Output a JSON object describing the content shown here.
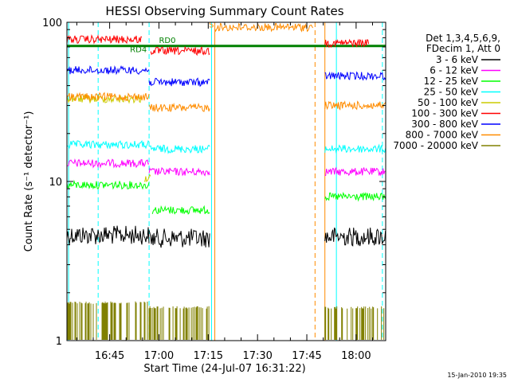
{
  "chart_data": {
    "type": "line",
    "title": "HESSI Observing Summary Count Rates",
    "xlabel": "Start Time (24-Jul-07 16:31:22)",
    "ylabel": "Count Rate (s⁻¹ detector⁻¹)",
    "yscale": "log",
    "ylim": [
      1,
      100
    ],
    "xlim_minutes_after_1630": [
      2,
      99
    ],
    "x_ticks": [
      {
        "label": "16:45",
        "minute": 15
      },
      {
        "label": "17:00",
        "minute": 30
      },
      {
        "label": "17:15",
        "minute": 45
      },
      {
        "label": "17:30",
        "minute": 60
      },
      {
        "label": "17:45",
        "minute": 75
      },
      {
        "label": "18:00",
        "minute": 90
      }
    ],
    "y_ticks": [
      {
        "label": "1",
        "value": 1
      },
      {
        "label": "10",
        "value": 10
      },
      {
        "label": "100",
        "value": 100
      }
    ],
    "legend": {
      "position": "right",
      "header": [
        "Det 1,3,4,5,6,9,",
        "FDecim 1, Att 0"
      ],
      "entries": [
        {
          "label": "3 - 6 keV",
          "color": "#000000"
        },
        {
          "label": "6 - 12 keV",
          "color": "#ff00ff"
        },
        {
          "label": "12 - 25 keV",
          "color": "#00ff00"
        },
        {
          "label": "25 - 50 keV",
          "color": "#00ffff"
        },
        {
          "label": "50 - 100 keV",
          "color": "#cccc00"
        },
        {
          "label": "100 - 300 keV",
          "color": "#ff0000"
        },
        {
          "label": "300 - 800 keV",
          "color": "#0000ff"
        },
        {
          "label": "800 - 7000 keV",
          "color": "#ff8c00"
        },
        {
          "label": "7000 - 20000 keV",
          "color": "#808000"
        }
      ]
    },
    "series": [
      {
        "name": "3 - 6 keV",
        "color": "#000000",
        "segments": [
          {
            "x0": 2,
            "x1": 27,
            "y": 4.6
          },
          {
            "x0": 27,
            "x1": 45.5,
            "y": 4.4
          },
          {
            "x0": 80.5,
            "x1": 99,
            "y": 4.5
          }
        ]
      },
      {
        "name": "6 - 12 keV",
        "color": "#ff00ff",
        "segments": [
          {
            "x0": 2,
            "x1": 27,
            "y": 13
          },
          {
            "x0": 27,
            "x1": 45.5,
            "y": 11.5
          },
          {
            "x0": 80.5,
            "x1": 99,
            "y": 11.5
          }
        ]
      },
      {
        "name": "12 - 25 keV",
        "color": "#00ff00",
        "segments": [
          {
            "x0": 2,
            "x1": 27,
            "y": 9.5
          },
          {
            "x0": 28,
            "x1": 45.5,
            "y": 6.6
          },
          {
            "x0": 80.5,
            "x1": 99,
            "y": 8
          }
        ]
      },
      {
        "name": "25 - 50 keV",
        "color": "#00ffff",
        "segments": [
          {
            "x0": 2,
            "x1": 27,
            "y": 17
          },
          {
            "x0": 27,
            "x1": 45.5,
            "y": 16
          },
          {
            "x0": 80.5,
            "x1": 99,
            "y": 16
          }
        ]
      },
      {
        "name": "50 - 100 keV",
        "color": "#cccc00",
        "segments": [
          {
            "x0": 2,
            "x1": 25,
            "y": 33
          },
          {
            "x0": 25.5,
            "x1": 27.5,
            "y": 10.5
          }
        ]
      },
      {
        "name": "100 - 300 keV",
        "color": "#ff0000",
        "segments": [
          {
            "x0": 2,
            "x1": 25,
            "y": 78
          },
          {
            "x0": 27.5,
            "x1": 45.5,
            "y": 66
          },
          {
            "x0": 80.5,
            "x1": 94,
            "y": 74
          }
        ]
      },
      {
        "name": "300 - 800 keV",
        "color": "#0000ff",
        "segments": [
          {
            "x0": 2,
            "x1": 27,
            "y": 50
          },
          {
            "x0": 27,
            "x1": 45.5,
            "y": 42
          },
          {
            "x0": 80.5,
            "x1": 99,
            "y": 46
          }
        ]
      },
      {
        "name": "800 - 7000 keV",
        "color": "#ff8c00",
        "segments": [
          {
            "x0": 2,
            "x1": 27,
            "y": 34
          },
          {
            "x0": 27,
            "x1": 45.5,
            "y": 29
          },
          {
            "x0": 47,
            "x1": 77,
            "y": 93
          },
          {
            "x0": 80.5,
            "x1": 99,
            "y": 30
          }
        ]
      },
      {
        "name": "7000 - 20000 keV",
        "color": "#808000",
        "segments": [
          {
            "x0": 2,
            "x1": 27,
            "y": 1.5
          },
          {
            "x0": 27,
            "x1": 45.5,
            "y": 1.4
          },
          {
            "x0": 80.5,
            "x1": 99,
            "y": 1.4
          }
        ]
      }
    ],
    "reference_line": {
      "y": 71,
      "color": "#008000"
    },
    "vertical_markers": [
      {
        "minute": 2.5,
        "style": "solid",
        "color": "#00ffff"
      },
      {
        "minute": 11.5,
        "style": "dashed",
        "color": "#00ffff"
      },
      {
        "minute": 27,
        "style": "dashed",
        "color": "#00ffff"
      },
      {
        "minute": 46,
        "style": "solid",
        "color": "#00ffff"
      },
      {
        "minute": 47,
        "style": "solid",
        "color": "#ff8c00"
      },
      {
        "minute": 77.5,
        "style": "dashed",
        "color": "#ff8c00"
      },
      {
        "minute": 80.5,
        "style": "solid",
        "color": "#ff8c00"
      },
      {
        "minute": 84,
        "style": "solid",
        "color": "#00ffff"
      },
      {
        "minute": 98,
        "style": "dashed",
        "color": "#00ffff"
      }
    ],
    "annotations": [
      {
        "text": "RD4",
        "color": "#008000",
        "minute": 21.2,
        "y": 65
      },
      {
        "text": "RD0",
        "color": "#008000",
        "minute": 30,
        "y": 74
      },
      {
        "text": "S",
        "color": "#ff8c00",
        "minute": 45.2,
        "y": 93
      }
    ],
    "footer_timestamp": "15-Jan-2010 19:35"
  }
}
